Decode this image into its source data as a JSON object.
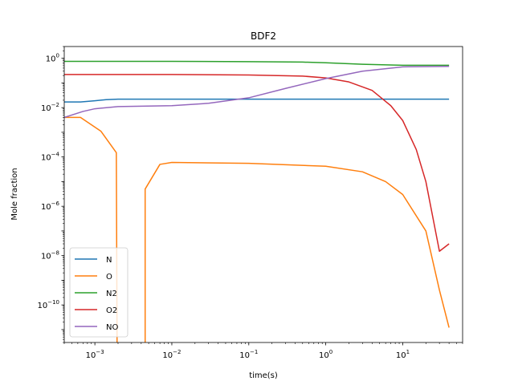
{
  "chart_data": {
    "type": "line",
    "title": "BDF2",
    "xlabel": "time(s)",
    "ylabel": "Mole fraction",
    "xscale": "log",
    "yscale": "log",
    "xlim": [
      0.0004,
      60
    ],
    "ylim": [
      3e-12,
      3
    ],
    "x_ticks": [
      {
        "value": 0.001,
        "mant": "10",
        "exp": "−3"
      },
      {
        "value": 0.01,
        "mant": "10",
        "exp": "−2"
      },
      {
        "value": 0.1,
        "mant": "10",
        "exp": "−1"
      },
      {
        "value": 1,
        "mant": "10",
        "exp": "0"
      },
      {
        "value": 10,
        "mant": "10",
        "exp": "1"
      }
    ],
    "y_ticks": [
      {
        "value": 1,
        "mant": "10",
        "exp": "0"
      },
      {
        "value": 0.01,
        "mant": "10",
        "exp": "−2"
      },
      {
        "value": 0.0001,
        "mant": "10",
        "exp": "−4"
      },
      {
        "value": 1e-06,
        "mant": "10",
        "exp": "−6"
      },
      {
        "value": 1e-08,
        "mant": "10",
        "exp": "−8"
      },
      {
        "value": 1e-10,
        "mant": "10",
        "exp": "−10"
      }
    ],
    "grid": false,
    "legend_position": "lower-left",
    "series": [
      {
        "name": "N",
        "color": "#1f77b4",
        "points": [
          [
            0.0004,
            0.017
          ],
          [
            0.00065,
            0.017
          ],
          [
            0.001,
            0.019
          ],
          [
            0.0014,
            0.021
          ],
          [
            0.002,
            0.022
          ],
          [
            0.005,
            0.022
          ],
          [
            0.1,
            0.022
          ],
          [
            1,
            0.022
          ],
          [
            10,
            0.022
          ],
          [
            40,
            0.022
          ]
        ]
      },
      {
        "name": "O",
        "color": "#ff7f0e",
        "points": [
          [
            0.0004,
            0.004
          ],
          [
            0.00065,
            0.004
          ],
          [
            0.0012,
            0.0011
          ],
          [
            0.0019,
            0.00015
          ],
          [
            0.00195,
            1e-13
          ],
          [
            0.0045,
            1e-13
          ],
          [
            0.0045,
            5e-06
          ],
          [
            0.007,
            5e-05
          ],
          [
            0.01,
            6e-05
          ],
          [
            0.1,
            5.5e-05
          ],
          [
            1,
            4.2e-05
          ],
          [
            3,
            2.5e-05
          ],
          [
            6,
            1e-05
          ],
          [
            10,
            3e-06
          ],
          [
            20,
            1e-07
          ],
          [
            30,
            4e-10
          ],
          [
            40,
            1.2e-11
          ]
        ]
      },
      {
        "name": "N2",
        "color": "#2ca02c",
        "points": [
          [
            0.0004,
            0.75
          ],
          [
            0.01,
            0.75
          ],
          [
            0.1,
            0.73
          ],
          [
            0.5,
            0.7
          ],
          [
            1,
            0.66
          ],
          [
            3,
            0.57
          ],
          [
            10,
            0.52
          ],
          [
            40,
            0.52
          ]
        ]
      },
      {
        "name": "O2",
        "color": "#d62728",
        "points": [
          [
            0.0004,
            0.22
          ],
          [
            0.01,
            0.22
          ],
          [
            0.1,
            0.21
          ],
          [
            0.5,
            0.19
          ],
          [
            1,
            0.16
          ],
          [
            2,
            0.11
          ],
          [
            4,
            0.05
          ],
          [
            7,
            0.012
          ],
          [
            10,
            0.003
          ],
          [
            15,
            0.0002
          ],
          [
            20,
            1e-05
          ],
          [
            30,
            1.5e-08
          ],
          [
            40,
            3e-08
          ]
        ]
      },
      {
        "name": "NO",
        "color": "#9467bd",
        "points": [
          [
            0.0004,
            0.004
          ],
          [
            0.0007,
            0.007
          ],
          [
            0.001,
            0.009
          ],
          [
            0.002,
            0.011
          ],
          [
            0.01,
            0.012
          ],
          [
            0.03,
            0.015
          ],
          [
            0.1,
            0.025
          ],
          [
            0.3,
            0.06
          ],
          [
            1,
            0.15
          ],
          [
            3,
            0.3
          ],
          [
            10,
            0.45
          ],
          [
            40,
            0.47
          ]
        ]
      }
    ]
  }
}
